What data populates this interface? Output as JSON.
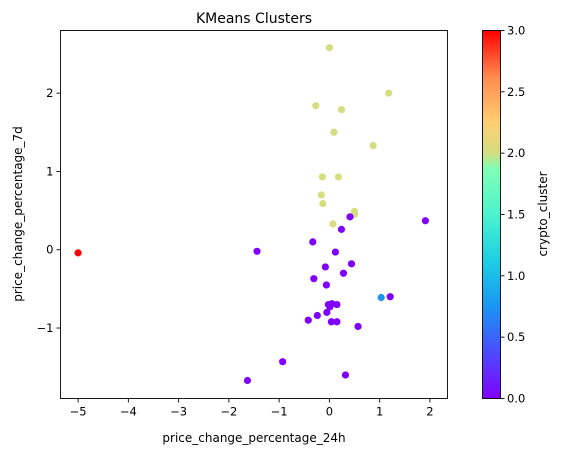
{
  "chart_data": {
    "type": "scatter",
    "title": "KMeans Clusters",
    "xlabel": "price_change_percentage_24h",
    "ylabel": "price_change_percentage_7d",
    "xlim": [
      -5.35,
      2.35
    ],
    "ylim": [
      -1.9,
      2.8
    ],
    "xticks": [
      -5,
      -4,
      -3,
      -2,
      -1,
      0,
      1,
      2
    ],
    "yticks": [
      -1,
      0,
      1,
      2
    ],
    "grid": false,
    "colorbar": {
      "label": "crypto_cluster",
      "min": 0,
      "max": 3,
      "ticks": [
        "0.0",
        "0.5",
        "1.0",
        "1.5",
        "2.0",
        "2.5",
        "3.0"
      ],
      "colormap": "rainbow"
    },
    "points": [
      {
        "x": -5.0,
        "y": -0.04,
        "cluster": 3
      },
      {
        "x": 1.03,
        "y": -0.61,
        "cluster": 1
      },
      {
        "x": 0.0,
        "y": 2.58,
        "cluster": 2
      },
      {
        "x": 1.18,
        "y": 2.0,
        "cluster": 2
      },
      {
        "x": -0.27,
        "y": 1.84,
        "cluster": 2
      },
      {
        "x": 0.24,
        "y": 1.79,
        "cluster": 2
      },
      {
        "x": 0.09,
        "y": 1.5,
        "cluster": 2
      },
      {
        "x": 0.87,
        "y": 1.33,
        "cluster": 2
      },
      {
        "x": -0.14,
        "y": 0.93,
        "cluster": 2
      },
      {
        "x": 0.18,
        "y": 0.93,
        "cluster": 2
      },
      {
        "x": -0.16,
        "y": 0.7,
        "cluster": 2
      },
      {
        "x": -0.13,
        "y": 0.59,
        "cluster": 2
      },
      {
        "x": 0.5,
        "y": 0.49,
        "cluster": 2
      },
      {
        "x": 0.5,
        "y": 0.45,
        "cluster": 2
      },
      {
        "x": 0.07,
        "y": 0.33,
        "cluster": 2
      },
      {
        "x": 0.41,
        "y": 0.42,
        "cluster": 0
      },
      {
        "x": 1.91,
        "y": 0.37,
        "cluster": 0
      },
      {
        "x": 0.24,
        "y": 0.26,
        "cluster": 0
      },
      {
        "x": -0.33,
        "y": 0.1,
        "cluster": 0
      },
      {
        "x": -1.44,
        "y": -0.02,
        "cluster": 0
      },
      {
        "x": 0.12,
        "y": -0.03,
        "cluster": 0
      },
      {
        "x": 0.44,
        "y": -0.18,
        "cluster": 0
      },
      {
        "x": -0.08,
        "y": -0.22,
        "cluster": 0
      },
      {
        "x": 0.28,
        "y": -0.3,
        "cluster": 0
      },
      {
        "x": -0.31,
        "y": -0.37,
        "cluster": 0
      },
      {
        "x": -0.06,
        "y": -0.45,
        "cluster": 0
      },
      {
        "x": 1.21,
        "y": -0.6,
        "cluster": 0
      },
      {
        "x": 0.05,
        "y": -0.69,
        "cluster": 0
      },
      {
        "x": -0.02,
        "y": -0.7,
        "cluster": 0
      },
      {
        "x": 0.15,
        "y": -0.7,
        "cluster": 0
      },
      {
        "x": 0.01,
        "y": -0.73,
        "cluster": 0
      },
      {
        "x": -0.05,
        "y": -0.8,
        "cluster": 0
      },
      {
        "x": -0.24,
        "y": -0.84,
        "cluster": 0
      },
      {
        "x": -0.42,
        "y": -0.9,
        "cluster": 0
      },
      {
        "x": 0.04,
        "y": -0.92,
        "cluster": 0
      },
      {
        "x": 0.15,
        "y": -0.92,
        "cluster": 0
      },
      {
        "x": 0.57,
        "y": -0.98,
        "cluster": 0
      },
      {
        "x": -0.93,
        "y": -1.43,
        "cluster": 0
      },
      {
        "x": 0.32,
        "y": -1.6,
        "cluster": 0
      },
      {
        "x": -1.63,
        "y": -1.67,
        "cluster": 0
      }
    ],
    "cluster_colors": [
      "#8000ff",
      "#1996f3",
      "#d4dd80",
      "#ff0000"
    ]
  }
}
